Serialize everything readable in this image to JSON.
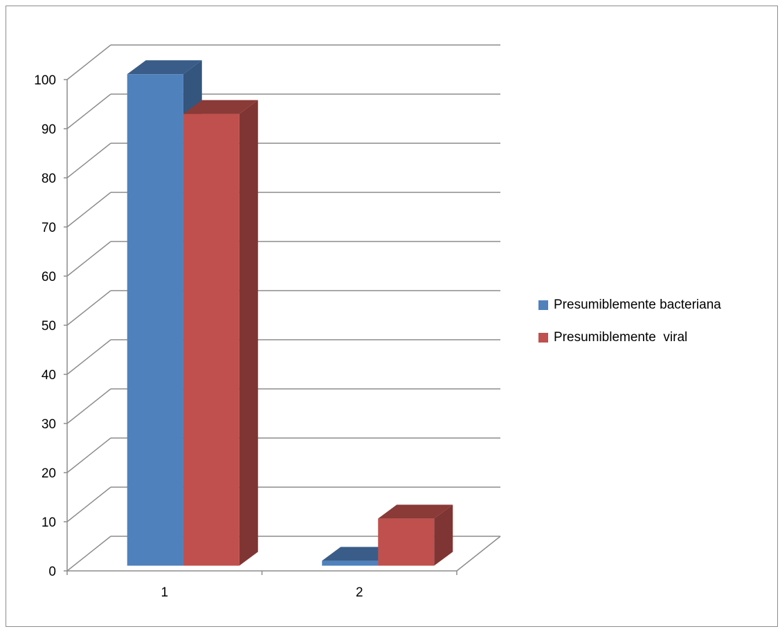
{
  "chart_data": {
    "type": "bar",
    "title": "",
    "xlabel": "",
    "ylabel": "",
    "categories": [
      "1",
      "2"
    ],
    "series": [
      {
        "name": "Presumiblemente bacteriana",
        "values": [
          99,
          1
        ],
        "color": "#4f81bd"
      },
      {
        "name": "Presumiblemente  viral",
        "values": [
          91,
          9.5
        ],
        "color": "#c0504d"
      }
    ],
    "ylim": [
      0,
      100
    ],
    "yticks": [
      "0",
      "10",
      "20",
      "30",
      "40",
      "50",
      "60",
      "70",
      "80",
      "90",
      "100"
    ],
    "grid": true,
    "legend": "right",
    "style": "3d-clustered-column"
  }
}
